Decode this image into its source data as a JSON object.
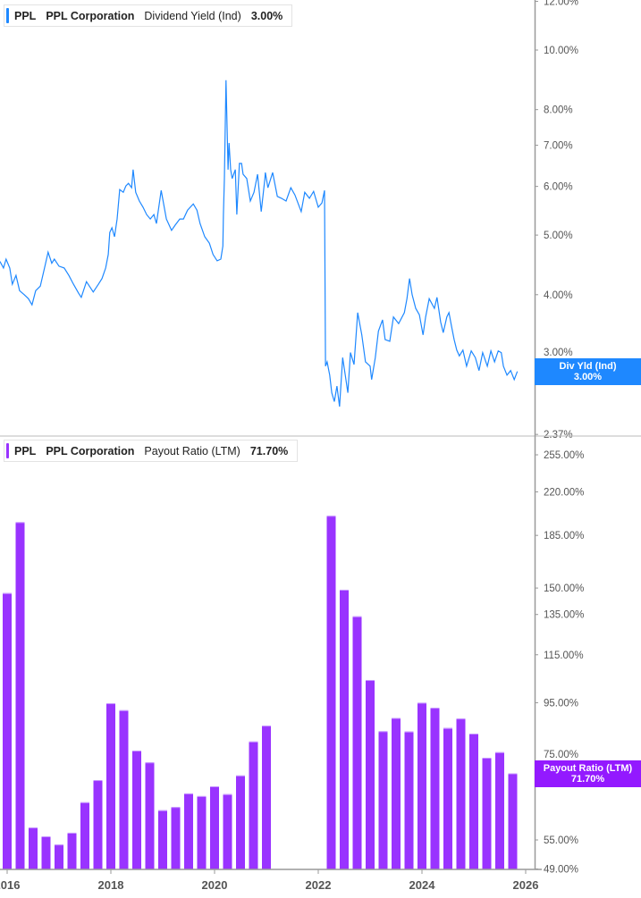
{
  "colors": {
    "yield_line": "#1e88ff",
    "bars": "#9933ff",
    "bar_top": "#c99bff",
    "axis": "#999999"
  },
  "top_legend": {
    "ticker": "PPL",
    "company": "PPL Corporation",
    "metric": "Dividend Yield (Ind)",
    "value": "3.00%"
  },
  "bottom_legend": {
    "ticker": "PPL",
    "company": "PPL Corporation",
    "metric": "Payout Ratio (LTM)",
    "value": "71.70%"
  },
  "top_badge": {
    "label": "Div Yld (Ind)",
    "value": "3.00%"
  },
  "bottom_badge": {
    "label": "Payout Ratio (LTM)",
    "value": "71.70%"
  },
  "chart_data": [
    {
      "type": "line",
      "scale": "log",
      "name": "Dividend Yield (Ind)",
      "ylabel": "",
      "xlabel": "",
      "y_ticks": [
        {
          "v": 12,
          "label": "12.00%"
        },
        {
          "v": 10,
          "label": "10.00%"
        },
        {
          "v": 8,
          "label": "8.00%"
        },
        {
          "v": 7,
          "label": "7.00%"
        },
        {
          "v": 6,
          "label": "6.00%"
        },
        {
          "v": 5,
          "label": "5.00%"
        },
        {
          "v": 4,
          "label": "4.00%"
        },
        {
          "v": 3,
          "label": "3.00%"
        },
        {
          "v": 2.37,
          "label": "2.37%"
        }
      ],
      "ylim": [
        2.37,
        12.3
      ],
      "points": [
        [
          2015.86,
          4.53
        ],
        [
          2015.93,
          4.42
        ],
        [
          2015.98,
          4.57
        ],
        [
          2016.05,
          4.42
        ],
        [
          2016.1,
          4.16
        ],
        [
          2016.17,
          4.3
        ],
        [
          2016.24,
          4.06
        ],
        [
          2016.33,
          4.0
        ],
        [
          2016.41,
          3.94
        ],
        [
          2016.48,
          3.85
        ],
        [
          2016.55,
          4.06
        ],
        [
          2016.64,
          4.13
        ],
        [
          2016.72,
          4.42
        ],
        [
          2016.79,
          4.69
        ],
        [
          2016.86,
          4.5
        ],
        [
          2016.91,
          4.57
        ],
        [
          2017.0,
          4.45
        ],
        [
          2017.1,
          4.42
        ],
        [
          2017.19,
          4.3
        ],
        [
          2017.28,
          4.16
        ],
        [
          2017.38,
          4.02
        ],
        [
          2017.43,
          3.96
        ],
        [
          2017.53,
          4.2
        ],
        [
          2017.66,
          4.04
        ],
        [
          2017.76,
          4.16
        ],
        [
          2017.83,
          4.25
        ],
        [
          2017.9,
          4.42
        ],
        [
          2017.95,
          4.65
        ],
        [
          2017.98,
          5.05
        ],
        [
          2018.02,
          5.14
        ],
        [
          2018.07,
          4.97
        ],
        [
          2018.12,
          5.31
        ],
        [
          2018.17,
          5.93
        ],
        [
          2018.24,
          5.87
        ],
        [
          2018.29,
          6.01
        ],
        [
          2018.34,
          6.07
        ],
        [
          2018.4,
          5.97
        ],
        [
          2018.43,
          6.39
        ],
        [
          2018.48,
          5.87
        ],
        [
          2018.55,
          5.68
        ],
        [
          2018.62,
          5.55
        ],
        [
          2018.69,
          5.4
        ],
        [
          2018.76,
          5.31
        ],
        [
          2018.83,
          5.4
        ],
        [
          2018.88,
          5.22
        ],
        [
          2018.97,
          5.91
        ],
        [
          2019.07,
          5.31
        ],
        [
          2019.17,
          5.09
        ],
        [
          2019.24,
          5.19
        ],
        [
          2019.33,
          5.31
        ],
        [
          2019.4,
          5.31
        ],
        [
          2019.48,
          5.49
        ],
        [
          2019.59,
          5.62
        ],
        [
          2019.66,
          5.49
        ],
        [
          2019.72,
          5.22
        ],
        [
          2019.81,
          4.97
        ],
        [
          2019.9,
          4.85
        ],
        [
          2019.97,
          4.65
        ],
        [
          2020.05,
          4.54
        ],
        [
          2020.12,
          4.57
        ],
        [
          2020.16,
          4.8
        ],
        [
          2020.17,
          5.4
        ],
        [
          2020.19,
          6.18
        ],
        [
          2020.22,
          8.93
        ],
        [
          2020.26,
          6.39
        ],
        [
          2020.28,
          7.06
        ],
        [
          2020.31,
          6.39
        ],
        [
          2020.34,
          6.18
        ],
        [
          2020.4,
          6.39
        ],
        [
          2020.43,
          5.4
        ],
        [
          2020.48,
          6.54
        ],
        [
          2020.52,
          6.54
        ],
        [
          2020.55,
          6.28
        ],
        [
          2020.62,
          6.18
        ],
        [
          2020.69,
          5.68
        ],
        [
          2020.76,
          5.87
        ],
        [
          2020.83,
          6.28
        ],
        [
          2020.9,
          5.46
        ],
        [
          2020.97,
          6.18
        ],
        [
          2020.98,
          6.32
        ],
        [
          2021.03,
          5.97
        ],
        [
          2021.12,
          6.32
        ],
        [
          2021.21,
          5.78
        ],
        [
          2021.29,
          5.74
        ],
        [
          2021.38,
          5.68
        ],
        [
          2021.47,
          5.97
        ],
        [
          2021.55,
          5.81
        ],
        [
          2021.67,
          5.46
        ],
        [
          2021.74,
          5.87
        ],
        [
          2021.83,
          5.74
        ],
        [
          2021.91,
          5.89
        ],
        [
          2022.0,
          5.55
        ],
        [
          2022.07,
          5.64
        ],
        [
          2022.12,
          5.91
        ],
        [
          2022.14,
          3.06
        ],
        [
          2022.17,
          3.11
        ],
        [
          2022.22,
          2.96
        ],
        [
          2022.26,
          2.77
        ],
        [
          2022.31,
          2.68
        ],
        [
          2022.36,
          2.84
        ],
        [
          2022.41,
          2.63
        ],
        [
          2022.47,
          3.16
        ],
        [
          2022.52,
          2.96
        ],
        [
          2022.57,
          2.77
        ],
        [
          2022.62,
          3.22
        ],
        [
          2022.69,
          3.08
        ],
        [
          2022.76,
          3.74
        ],
        [
          2022.84,
          3.44
        ],
        [
          2022.91,
          3.11
        ],
        [
          2023.0,
          3.06
        ],
        [
          2023.03,
          2.91
        ],
        [
          2023.1,
          3.16
        ],
        [
          2023.16,
          3.49
        ],
        [
          2023.24,
          3.64
        ],
        [
          2023.29,
          3.38
        ],
        [
          2023.38,
          3.36
        ],
        [
          2023.45,
          3.68
        ],
        [
          2023.55,
          3.59
        ],
        [
          2023.66,
          3.74
        ],
        [
          2023.71,
          3.94
        ],
        [
          2023.76,
          4.25
        ],
        [
          2023.81,
          4.0
        ],
        [
          2023.88,
          3.8
        ],
        [
          2023.95,
          3.71
        ],
        [
          2024.02,
          3.44
        ],
        [
          2024.07,
          3.68
        ],
        [
          2024.14,
          3.94
        ],
        [
          2024.24,
          3.8
        ],
        [
          2024.29,
          3.96
        ],
        [
          2024.36,
          3.61
        ],
        [
          2024.41,
          3.47
        ],
        [
          2024.48,
          3.68
        ],
        [
          2024.52,
          3.74
        ],
        [
          2024.57,
          3.55
        ],
        [
          2024.62,
          3.38
        ],
        [
          2024.67,
          3.25
        ],
        [
          2024.72,
          3.18
        ],
        [
          2024.79,
          3.25
        ],
        [
          2024.86,
          3.06
        ],
        [
          2024.95,
          3.24
        ],
        [
          2025.03,
          3.16
        ],
        [
          2025.1,
          3.01
        ],
        [
          2025.17,
          3.22
        ],
        [
          2025.26,
          3.06
        ],
        [
          2025.33,
          3.24
        ],
        [
          2025.4,
          3.11
        ],
        [
          2025.47,
          3.24
        ],
        [
          2025.53,
          3.22
        ],
        [
          2025.57,
          3.06
        ],
        [
          2025.64,
          2.96
        ],
        [
          2025.71,
          3.01
        ],
        [
          2025.78,
          2.91
        ],
        [
          2025.84,
          3.0
        ]
      ]
    },
    {
      "type": "bar",
      "scale": "log",
      "name": "Payout Ratio (LTM)",
      "ylabel": "",
      "xlabel": "",
      "y_ticks": [
        {
          "v": 255,
          "label": "255.00%"
        },
        {
          "v": 220,
          "label": "220.00%"
        },
        {
          "v": 185,
          "label": "185.00%"
        },
        {
          "v": 150,
          "label": "150.00%"
        },
        {
          "v": 135,
          "label": "135.00%"
        },
        {
          "v": 115,
          "label": "115.00%"
        },
        {
          "v": 95,
          "label": "95.00%"
        },
        {
          "v": 75,
          "label": "75.00%"
        },
        {
          "v": 55,
          "label": "55.00%"
        },
        {
          "v": 49,
          "label": "49.00%"
        }
      ],
      "ylim": [
        49,
        255
      ],
      "x": [
        2016.0,
        2016.25,
        2016.5,
        2016.75,
        2017.0,
        2017.25,
        2017.5,
        2017.75,
        2018.0,
        2018.25,
        2018.5,
        2018.75,
        2019.0,
        2019.25,
        2019.5,
        2019.75,
        2020.0,
        2020.25,
        2020.5,
        2020.75,
        2021.0,
        2022.25,
        2022.5,
        2022.75,
        2023.0,
        2023.25,
        2023.5,
        2023.75,
        2024.0,
        2024.25,
        2024.5,
        2024.75,
        2025.0,
        2025.25,
        2025.5,
        2025.75
      ],
      "values": [
        147,
        195,
        57.8,
        55.8,
        54.0,
        56.6,
        63.9,
        69.8,
        94.8,
        92.2,
        78.5,
        74.9,
        61.9,
        62.7,
        66.2,
        65.5,
        68.1,
        66.0,
        71.1,
        81.4,
        86.7,
        200,
        149,
        134,
        104,
        84.8,
        89.4,
        84.7,
        95.0,
        93.1,
        85.9,
        89.2,
        84.0,
        76.3,
        78.0,
        71.7
      ]
    }
  ],
  "x_ticks": [
    {
      "v": 2016,
      "label": "2016"
    },
    {
      "v": 2018,
      "label": "2018"
    },
    {
      "v": 2020,
      "label": "2020"
    },
    {
      "v": 2022,
      "label": "2022"
    },
    {
      "v": 2024,
      "label": "2024"
    },
    {
      "v": 2026,
      "label": "2026"
    }
  ]
}
